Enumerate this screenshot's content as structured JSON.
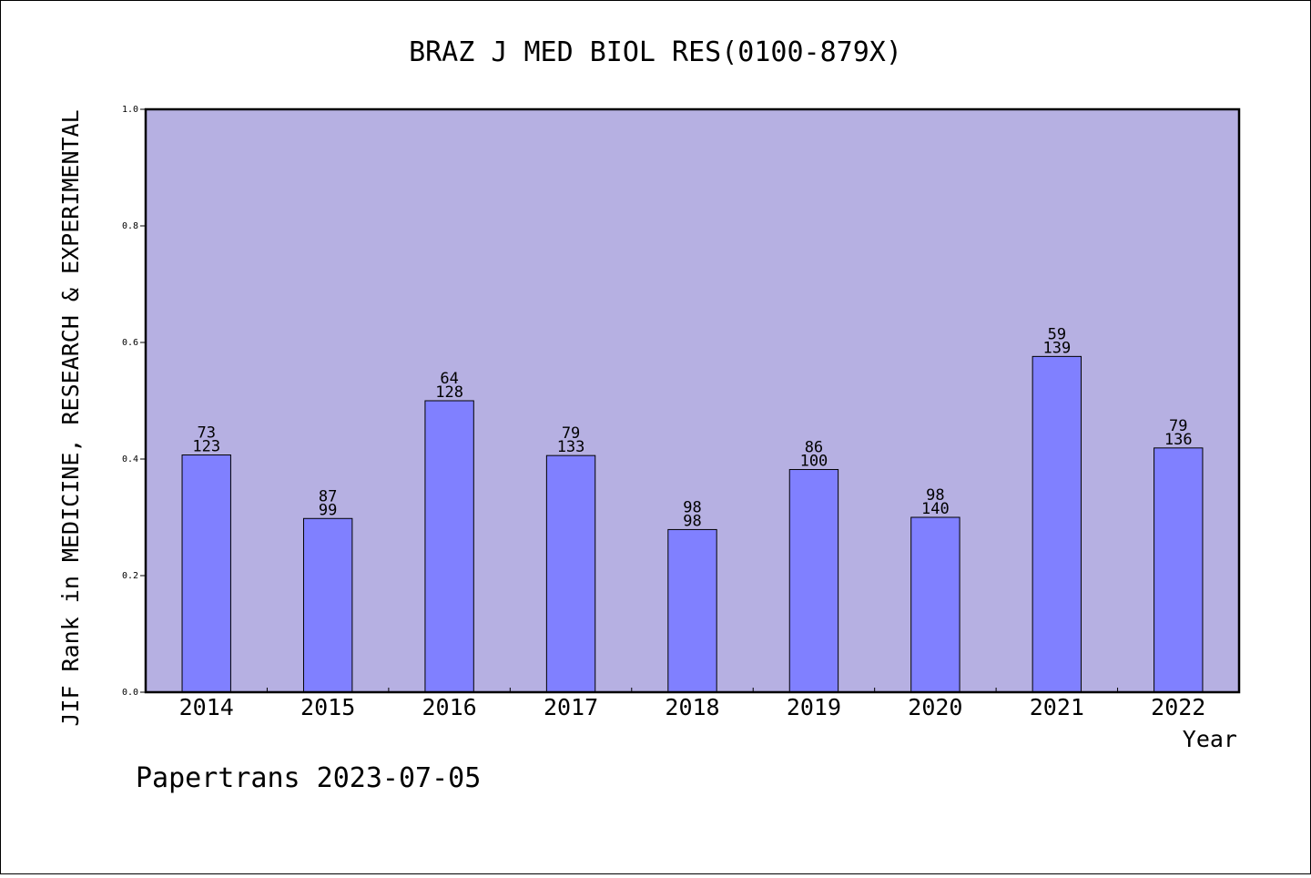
{
  "chart_data": {
    "type": "bar",
    "title": "BRAZ J MED BIOL RES(0100-879X)",
    "ylabel": "JIF Rank in MEDICINE, RESEARCH & EXPERIMENTAL",
    "xlabel": "Year",
    "ylim": [
      0,
      1.0
    ],
    "yticks": [
      "0.0",
      "0.2",
      "0.4",
      "0.6",
      "0.8",
      "1.0"
    ],
    "grid": false,
    "categories": [
      "2014",
      "2015",
      "2016",
      "2017",
      "2018",
      "2019",
      "2020",
      "2021",
      "2022"
    ],
    "values": [
      0.407,
      0.298,
      0.5,
      0.406,
      0.279,
      0.382,
      0.3,
      0.576,
      0.419
    ],
    "label_top": [
      "73",
      "87",
      "64",
      "79",
      "98",
      "86",
      "98",
      "59",
      "79"
    ],
    "label_bottom": [
      "123",
      "99",
      "128",
      "133",
      "98",
      "100",
      "140",
      "139",
      "136"
    ],
    "colors": {
      "plot_background": "#b6b0e2",
      "bar": "#8080ff"
    }
  },
  "footer": "Papertrans 2023-07-05"
}
